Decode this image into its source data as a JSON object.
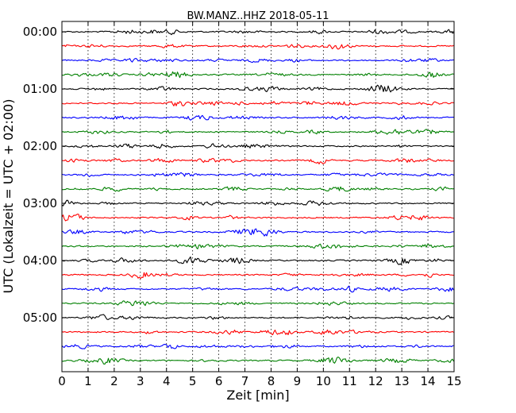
{
  "chart_data": {
    "type": "line",
    "title": "BW.MANZ..HHZ 2018-05-11",
    "xlabel": "Zeit  [min]",
    "ylabel": "UTC (Lokalzeit = UTC + 02:00)",
    "xlim": [
      0,
      15
    ],
    "x_ticks": [
      "0",
      "1",
      "2",
      "3",
      "4",
      "5",
      "6",
      "7",
      "8",
      "9",
      "10",
      "11",
      "12",
      "13",
      "14",
      "15"
    ],
    "y_ticks": [
      "00:00",
      "01:00",
      "02:00",
      "03:00",
      "04:00",
      "05:00"
    ],
    "grid": "vertical dotted at each minute",
    "trace_minutes": 15,
    "trace_count": 24,
    "trace_colors": [
      "#000000",
      "#ff0000",
      "#0000ff",
      "#008000"
    ],
    "traces_start_times": [
      "00:00",
      "00:15",
      "00:30",
      "00:45",
      "01:00",
      "01:15",
      "01:30",
      "01:45",
      "02:00",
      "02:15",
      "02:30",
      "02:45",
      "03:00",
      "03:15",
      "03:30",
      "03:45",
      "04:00",
      "04:15",
      "04:30",
      "04:45",
      "05:00",
      "05:15",
      "05:30",
      "05:45"
    ]
  }
}
